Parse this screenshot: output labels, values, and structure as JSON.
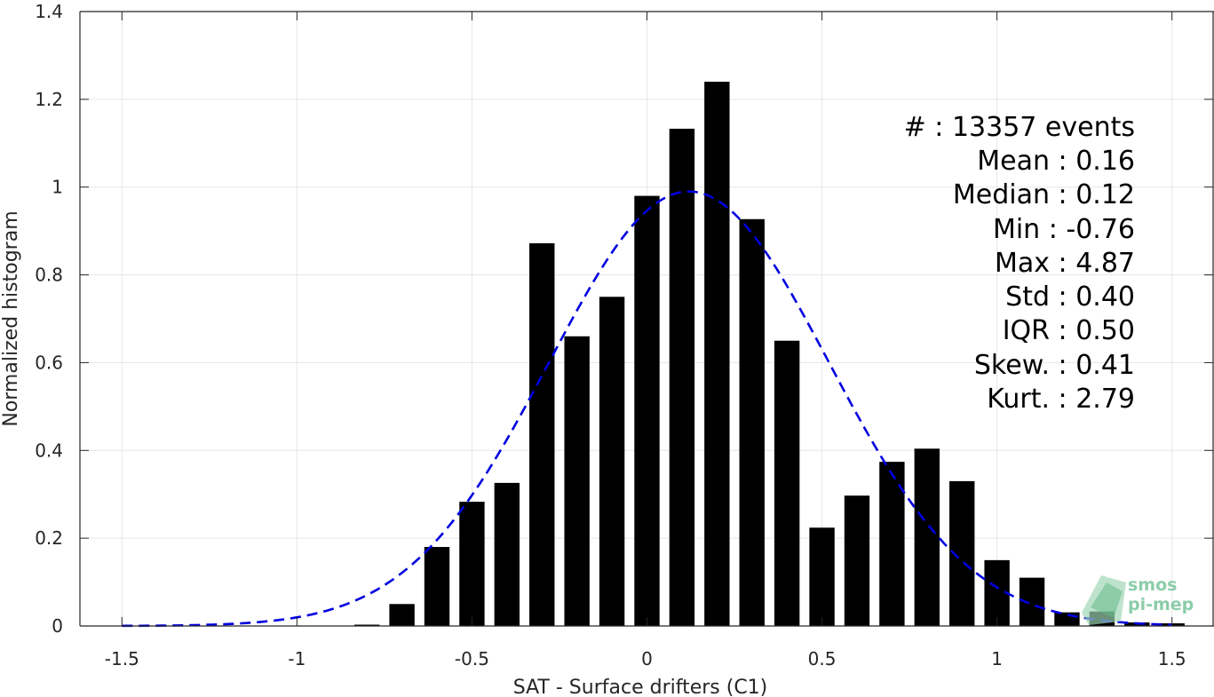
{
  "chart_data": {
    "type": "bar",
    "xlabel": "SAT - Surface drifters (C1)",
    "ylabel": "Normalized histogram",
    "xlim": [
      -1.62,
      1.62
    ],
    "ylim": [
      0,
      1.4
    ],
    "xticks": [
      -1.5,
      -1,
      -0.5,
      0,
      0.5,
      1,
      1.5
    ],
    "xtick_labels": [
      "-1.5",
      "-1",
      "-0.5",
      "0",
      "0.5",
      "1",
      "1.5"
    ],
    "yticks": [
      0,
      0.2,
      0.4,
      0.6,
      0.8,
      1,
      1.2,
      1.4
    ],
    "ytick_labels": [
      "0",
      "0.2",
      "0.4",
      "0.6",
      "0.8",
      "1",
      "1.2",
      "1.4"
    ],
    "grid": true,
    "bar_color": "#000000",
    "bin_width": 0.1,
    "bins": [
      -0.8,
      -0.7,
      -0.6,
      -0.5,
      -0.4,
      -0.3,
      -0.2,
      -0.1,
      0.0,
      0.1,
      0.2,
      0.3,
      0.4,
      0.5,
      0.6,
      0.7,
      0.8,
      0.9,
      1.0,
      1.1,
      1.2,
      1.3,
      1.4,
      1.5
    ],
    "values": [
      0.003,
      0.05,
      0.18,
      0.283,
      0.326,
      0.872,
      0.66,
      0.75,
      0.98,
      1.133,
      1.24,
      0.927,
      0.65,
      0.224,
      0.297,
      0.374,
      0.404,
      0.33,
      0.15,
      0.11,
      0.031,
      0.033,
      0.008,
      0.006
    ],
    "fit": {
      "type": "normal",
      "mean": 0.12,
      "std": 0.4,
      "peak": 0.99,
      "x_range": [
        -1.5,
        1.5
      ],
      "color": "#0000e0",
      "line_style": "dashed"
    },
    "annotations": [
      {
        "label": "#  : 13357 events"
      },
      {
        "label": "Mean : 0.16"
      },
      {
        "label": "Median : 0.12"
      },
      {
        "label": "Min : -0.76"
      },
      {
        "label": "Max : 4.87"
      },
      {
        "label": "Std : 0.40"
      },
      {
        "label": "IQR : 0.50"
      },
      {
        "label": "Skew. : 0.41"
      },
      {
        "label": "Kurt. : 2.79"
      }
    ]
  },
  "logo": {
    "line1": "smos",
    "line2": "pi-mep",
    "color": "#7fc8a0"
  }
}
